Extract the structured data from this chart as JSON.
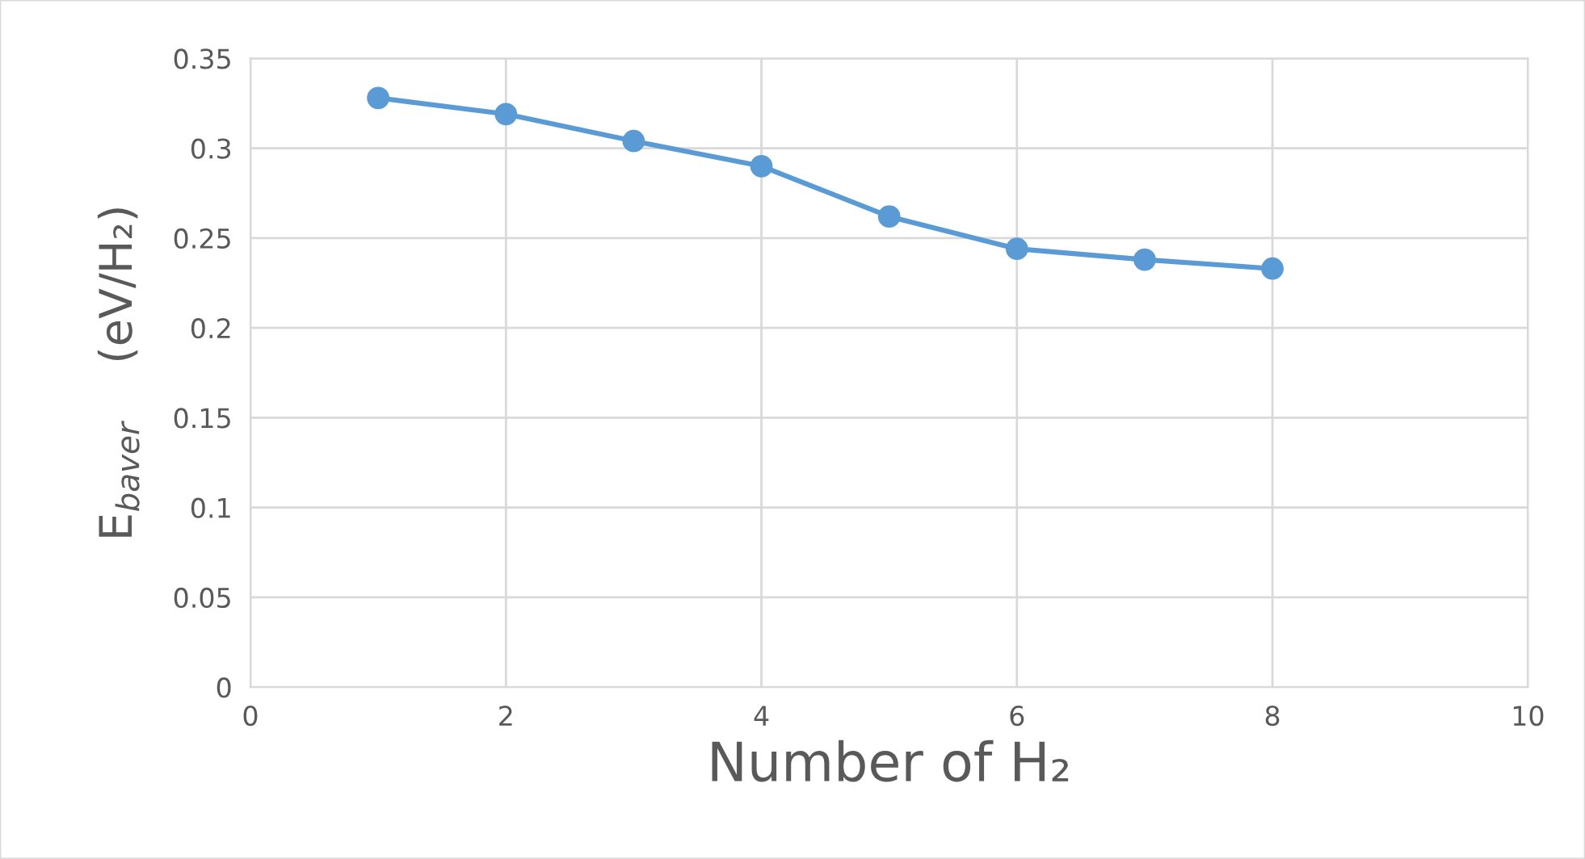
{
  "chart_data": {
    "type": "line",
    "xlabel": "Number of H₂",
    "ylabel": "E$_{baver}$    (eV/H₂)",
    "x": [
      1,
      2,
      3,
      4,
      5,
      6,
      7,
      8
    ],
    "series": [
      {
        "color": "#5b9bd5",
        "values": [
          0.328,
          0.319,
          0.304,
          0.29,
          0.262,
          0.244,
          0.238,
          0.233
        ]
      }
    ],
    "xlim": [
      0,
      10
    ],
    "xticks": [
      0,
      2,
      4,
      6,
      8,
      10
    ],
    "ylim": [
      0,
      0.35
    ],
    "yticks": [
      0,
      0.05,
      0.1,
      0.15,
      0.2,
      0.25,
      0.3,
      0.35
    ],
    "grid": true,
    "marker": "circle",
    "line_style": "solid"
  }
}
